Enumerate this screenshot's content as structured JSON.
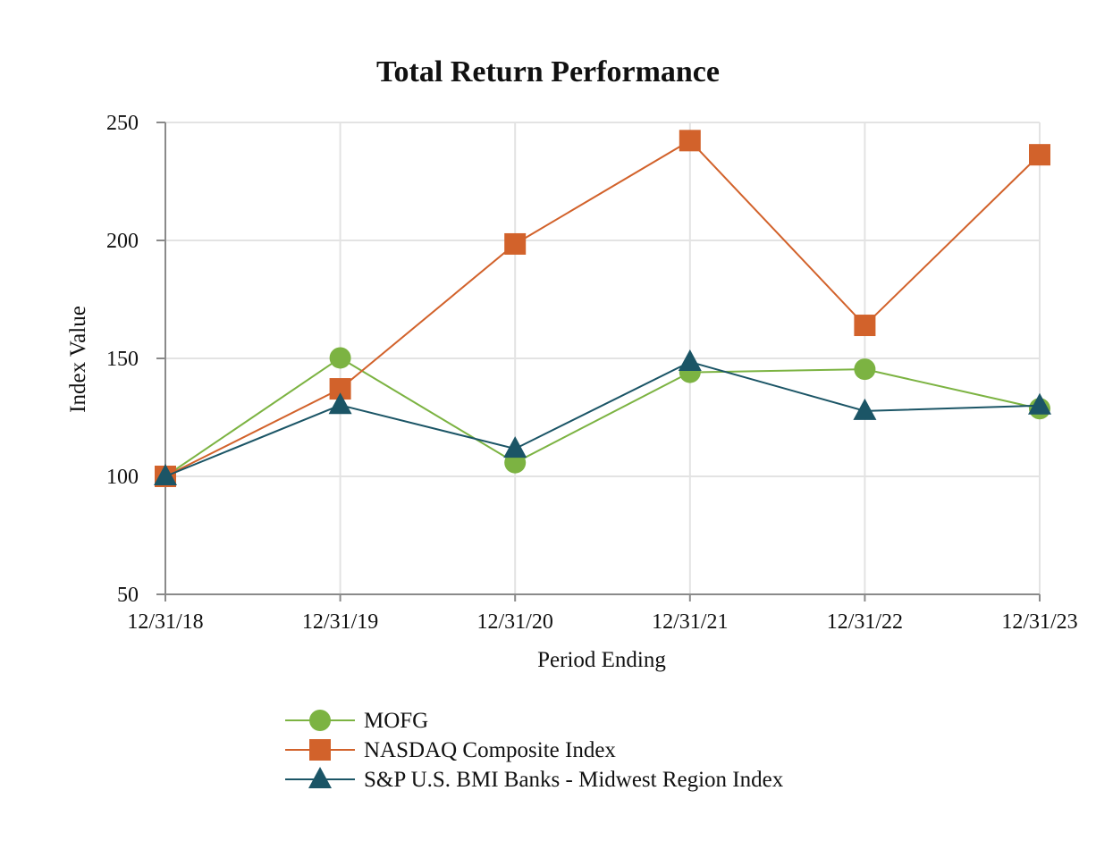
{
  "chart_data": {
    "type": "line",
    "title": "Total Return Performance",
    "xlabel": "Period Ending",
    "ylabel": "Index Value",
    "categories": [
      "12/31/18",
      "12/31/19",
      "12/31/20",
      "12/31/21",
      "12/31/22",
      "12/31/23"
    ],
    "ylim": [
      50,
      250
    ],
    "yticks": [
      50,
      100,
      150,
      200,
      250
    ],
    "grid": true,
    "legend_position": "bottom",
    "series": [
      {
        "name": "MOFG",
        "marker": "circle",
        "color": "#7cb342",
        "values": [
          100.0,
          150.2,
          105.8,
          144.1,
          145.4,
          128.7
        ]
      },
      {
        "name": "NASDAQ Composite Index",
        "marker": "square",
        "color": "#d2622b",
        "values": [
          100.0,
          137.1,
          198.5,
          242.3,
          164.0,
          236.3
        ]
      },
      {
        "name": "S&P U.S. BMI Banks - Midwest Region Index",
        "marker": "triangle",
        "color": "#1b5566",
        "values": [
          100.0,
          130.2,
          111.7,
          148.5,
          127.7,
          130.0
        ]
      }
    ]
  }
}
